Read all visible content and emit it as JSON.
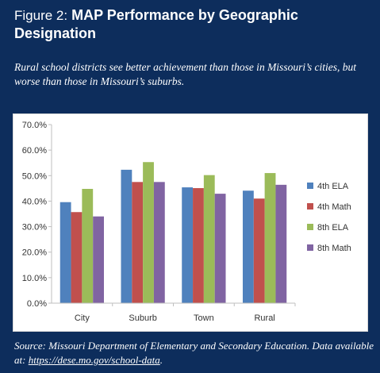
{
  "figure": {
    "label": "Figure 2:",
    "title": "MAP Performance by Geographic Designation",
    "subtitle": "Rural school districts see better achievement than those in Missouri’s cities, but worse than those in Missouri’s suburbs.",
    "source_text": "Source:  Missouri Department of Elementary and Secondary Education. Data available at:",
    "source_link": "https://dese.mo.gov/school-data",
    "source_end": "."
  },
  "colors": {
    "panel_background": "#0d2d5c",
    "chart_background": "#ffffff"
  },
  "chart_data": {
    "type": "bar",
    "categories": [
      "City",
      "Suburb",
      "Town",
      "Rural"
    ],
    "series": [
      {
        "name": "4th ELA",
        "color": "#4f81bd",
        "values": [
          39.6,
          52.3,
          45.4,
          44.1
        ]
      },
      {
        "name": "4th Math",
        "color": "#c0504d",
        "values": [
          35.7,
          47.5,
          45.1,
          41.0
        ]
      },
      {
        "name": "8th ELA",
        "color": "#9bbb59",
        "values": [
          44.8,
          55.3,
          50.2,
          51.0
        ]
      },
      {
        "name": "8th Math",
        "color": "#8064a2",
        "values": [
          34.0,
          47.5,
          42.9,
          46.4
        ]
      }
    ],
    "ylim": [
      0,
      70
    ],
    "yticks": [
      0,
      10,
      20,
      30,
      40,
      50,
      60,
      70
    ],
    "ytick_labels": [
      "0.0%",
      "10.0%",
      "20.0%",
      "30.0%",
      "40.0%",
      "50.0%",
      "60.0%",
      "70.0%"
    ],
    "grid": false,
    "legend_position": "right",
    "title": "",
    "xlabel": "",
    "ylabel": ""
  }
}
